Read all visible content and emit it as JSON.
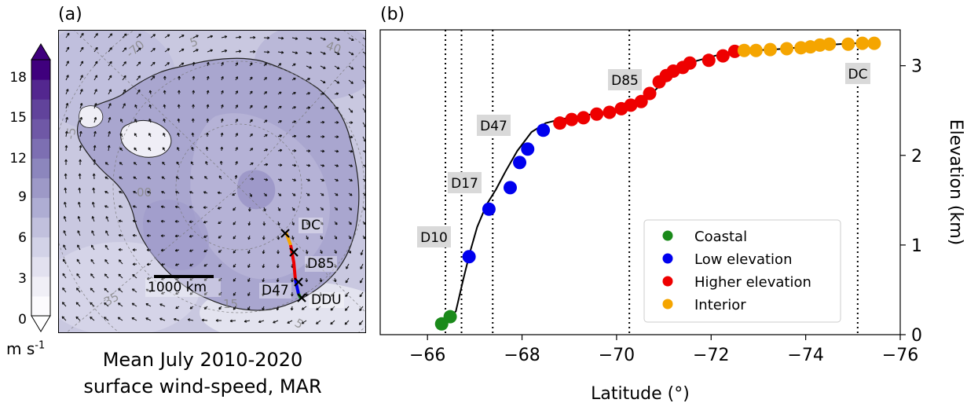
{
  "panel_a": {
    "letter": "(a)",
    "colorbar": {
      "ticks": [
        "0",
        "3",
        "6",
        "9",
        "12",
        "15",
        "18"
      ],
      "unit": "m s",
      "unit_exp": "-1",
      "colors": [
        "#fcfbfd",
        "#f0eff6",
        "#e2e1ef",
        "#d2d2e7",
        "#c1c0dd",
        "#aeadd3",
        "#9d99c7",
        "#8c86bd",
        "#7d6fb2",
        "#6f58a6",
        "#61439b",
        "#53278f",
        "#3f007d"
      ]
    },
    "map_labels": {
      "dc": "DC",
      "d85": "D85",
      "d47": "D47",
      "ddu": "DDU",
      "scale": "1000 km"
    },
    "caption_line1": "Mean July 2010-2020",
    "caption_line2": "surface wind-speed, MAR"
  },
  "panel_b": {
    "letter": "(b)"
  },
  "chart_data": {
    "type": "scatter",
    "xlabel": "Latitude (°)",
    "ylabel": "Elevation (km)",
    "xlim": [
      -65.0,
      -76.0
    ],
    "ylim": [
      0.0,
      3.4
    ],
    "x_ticks": [
      -66,
      -68,
      -70,
      -72,
      -74,
      -76
    ],
    "y_ticks": [
      0,
      1,
      2,
      3
    ],
    "x_tick_labels": [
      "−66",
      "−68",
      "−70",
      "−72",
      "−74",
      "−76"
    ],
    "y_tick_labels": [
      "0",
      "1",
      "2",
      "3"
    ],
    "grid": false,
    "legend_position": "bottom-right",
    "stations": [
      {
        "label": "D10",
        "lat": -66.38
      },
      {
        "label": "D17",
        "lat": -66.72
      },
      {
        "label": "D47",
        "lat": -67.38
      },
      {
        "label": "D85",
        "lat": -70.27
      },
      {
        "label": "DC",
        "lat": -75.1
      }
    ],
    "profile_line": {
      "lat": [
        -66.25,
        -66.45,
        -66.6,
        -66.75,
        -66.9,
        -67.05,
        -67.25,
        -67.45,
        -67.65,
        -67.9,
        -68.2,
        -68.5,
        -68.8,
        -69.1,
        -69.5,
        -69.9,
        -70.2,
        -70.5,
        -70.8,
        -71.2,
        -71.6,
        -72.0,
        -72.4,
        -72.8,
        -73.3,
        -73.8,
        -74.4,
        -75.0,
        -75.5
      ],
      "elev": [
        0.11,
        0.18,
        0.26,
        0.6,
        0.92,
        1.2,
        1.45,
        1.62,
        1.82,
        2.05,
        2.26,
        2.36,
        2.4,
        2.43,
        2.46,
        2.49,
        2.53,
        2.6,
        2.72,
        2.92,
        3.04,
        3.1,
        3.15,
        3.17,
        3.18,
        3.2,
        3.23,
        3.25,
        3.25
      ]
    },
    "series": [
      {
        "name": "Coastal",
        "color": "#1a8a1a",
        "lat": [
          -66.3,
          -66.48
        ],
        "elev": [
          0.12,
          0.2
        ]
      },
      {
        "name": "Low elevation",
        "color": "#0000ee",
        "lat": [
          -66.88,
          -67.3,
          -67.75,
          -67.95,
          -68.12,
          -68.45
        ],
        "elev": [
          0.87,
          1.4,
          1.64,
          1.92,
          2.07,
          2.28
        ]
      },
      {
        "name": "Higher elevation",
        "color": "#ee0000",
        "lat": [
          -68.8,
          -69.05,
          -69.3,
          -69.58,
          -69.85,
          -70.1,
          -70.3,
          -70.52,
          -70.7,
          -70.9,
          -71.05,
          -71.2,
          -71.4,
          -71.55,
          -71.95,
          -72.25,
          -72.5
        ],
        "elev": [
          2.36,
          2.4,
          2.42,
          2.46,
          2.48,
          2.52,
          2.56,
          2.6,
          2.69,
          2.82,
          2.89,
          2.94,
          2.98,
          3.03,
          3.06,
          3.11,
          3.16
        ]
      },
      {
        "name": "Interior",
        "color": "#f5a500",
        "lat": [
          -72.7,
          -72.95,
          -73.25,
          -73.6,
          -73.9,
          -74.1,
          -74.3,
          -74.5,
          -74.9,
          -75.2,
          -75.45
        ],
        "elev": [
          3.17,
          3.17,
          3.18,
          3.19,
          3.2,
          3.21,
          3.23,
          3.24,
          3.24,
          3.25,
          3.25
        ]
      }
    ]
  }
}
